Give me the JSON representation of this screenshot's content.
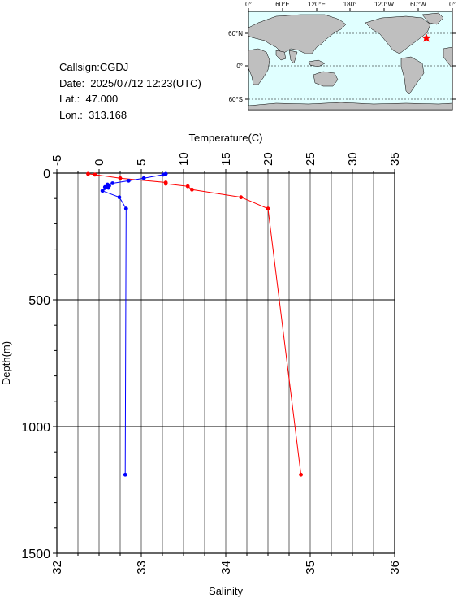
{
  "info": {
    "callsign": "Callsign:CGDJ",
    "date": "Date:  2025/07/12 12:23(UTC)",
    "lat": "Lat.:  47.000",
    "lon": "Lon.:  313.168"
  },
  "map": {
    "top_ticks": [
      "0°",
      "60°E",
      "120°E",
      "180°",
      "120°W",
      "60°W",
      "0°"
    ],
    "left_ticks": [
      "60°N",
      "0°",
      "60°S"
    ],
    "station_marker": "red-star",
    "colors": {
      "ocean": "#e0ffff",
      "land": "#bfbfbf"
    }
  },
  "chart_data": {
    "type": "line",
    "top_axis": {
      "label": "Temperature(C)",
      "range": [
        -5,
        35
      ],
      "ticks": [
        "-5",
        "0",
        "5",
        "10",
        "15",
        "20",
        "25",
        "30",
        "35"
      ]
    },
    "bottom_axis": {
      "label": "Salinity",
      "range": [
        32,
        36
      ],
      "ticks": [
        "32",
        "33",
        "34",
        "35",
        "36"
      ]
    },
    "y_axis": {
      "label": "Depth(m)",
      "range": [
        0,
        1500
      ],
      "inverted": true,
      "ticks": [
        "0",
        "500",
        "1000",
        "1500"
      ]
    },
    "grid": true,
    "series": [
      {
        "axis": "temperature",
        "color": "#ff0000",
        "points": [
          {
            "x": -1.3,
            "depth": 3
          },
          {
            "x": -0.5,
            "depth": 6
          },
          {
            "x": 2.5,
            "depth": 20
          },
          {
            "x": 7.9,
            "depth": 37
          },
          {
            "x": 7.9,
            "depth": 42
          },
          {
            "x": 10.5,
            "depth": 52
          },
          {
            "x": 11.0,
            "depth": 65
          },
          {
            "x": 16.8,
            "depth": 95
          },
          {
            "x": 20.0,
            "depth": 140
          },
          {
            "x": 23.9,
            "depth": 1190
          }
        ]
      },
      {
        "axis": "salinity",
        "color": "#0000ff",
        "points": [
          {
            "x": 33.29,
            "depth": 3
          },
          {
            "x": 33.26,
            "depth": 6
          },
          {
            "x": 33.03,
            "depth": 20
          },
          {
            "x": 32.85,
            "depth": 30
          },
          {
            "x": 32.66,
            "depth": 40
          },
          {
            "x": 32.6,
            "depth": 45
          },
          {
            "x": 32.62,
            "depth": 50
          },
          {
            "x": 32.57,
            "depth": 55
          },
          {
            "x": 32.61,
            "depth": 58
          },
          {
            "x": 32.54,
            "depth": 70
          },
          {
            "x": 32.74,
            "depth": 95
          },
          {
            "x": 32.82,
            "depth": 140
          },
          {
            "x": 32.81,
            "depth": 1190
          }
        ]
      }
    ]
  }
}
